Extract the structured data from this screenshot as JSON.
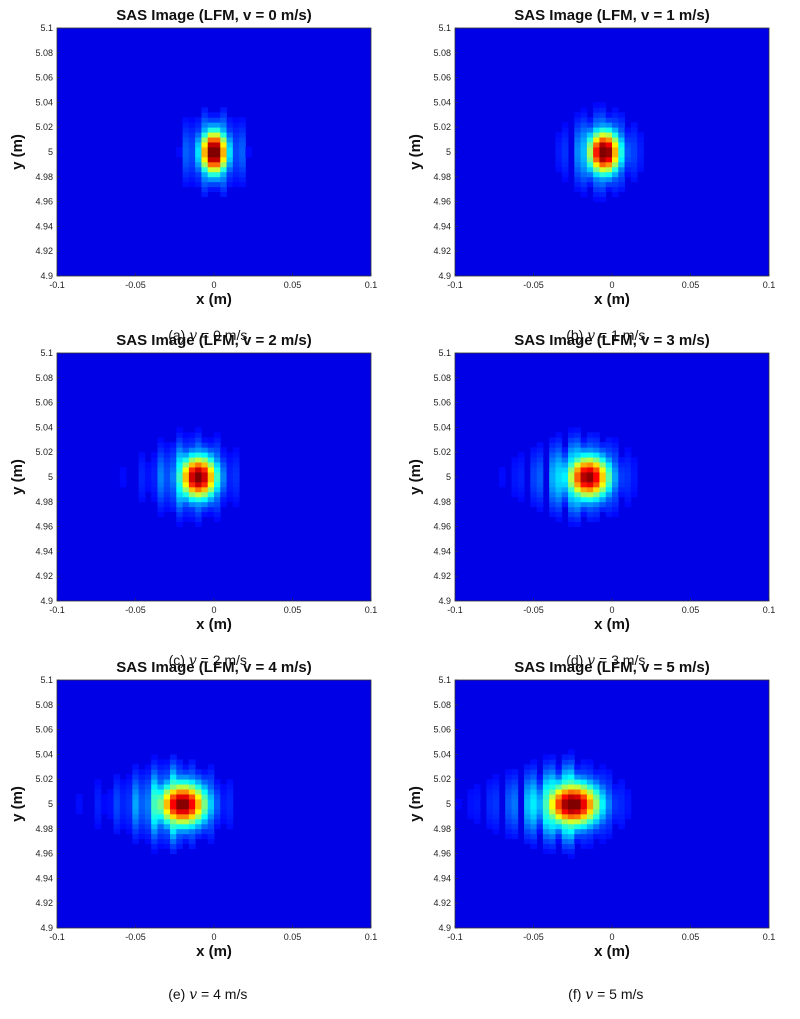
{
  "chart_data": [
    {
      "type": "heatmap",
      "title": "SAS Image (LFM, v = 0 m/s)",
      "caption": {
        "label": "(a)",
        "symbol": "v",
        "rest": "= 0 m/s"
      },
      "xlabel": "x (m)",
      "ylabel": "y (m)",
      "xlim": [
        -0.1,
        0.1
      ],
      "ylim": [
        4.9,
        5.1
      ],
      "xticks": [
        "-0.1",
        "-0.05",
        "0",
        "0.05",
        "0.1"
      ],
      "yticks": [
        "4.9",
        "4.92",
        "4.94",
        "4.96",
        "4.98",
        "5",
        "5.02",
        "5.04",
        "5.06",
        "5.08",
        "5.1"
      ],
      "velocity": 0,
      "peak_x": 0.0,
      "peak_y": 5.0,
      "peak_value": 1.0,
      "colormap": "jet"
    },
    {
      "type": "heatmap",
      "title": "SAS Image (LFM, v = 1 m/s)",
      "caption": {
        "label": "(b)",
        "symbol": "v",
        "rest": "= 1 m/s"
      },
      "xlabel": "x (m)",
      "ylabel": "y (m)",
      "xlim": [
        -0.1,
        0.1
      ],
      "ylim": [
        4.9,
        5.1
      ],
      "xticks": [
        "-0.1",
        "-0.05",
        "0",
        "0.05",
        "0.1"
      ],
      "yticks": [
        "4.9",
        "4.92",
        "4.94",
        "4.96",
        "4.98",
        "5",
        "5.02",
        "5.04",
        "5.06",
        "5.08",
        "5.1"
      ],
      "velocity": 1,
      "peak_x": -0.005,
      "peak_y": 5.0,
      "peak_value": 0.97,
      "colormap": "jet"
    },
    {
      "type": "heatmap",
      "title": "SAS Image (LFM, v = 2 m/s)",
      "caption": {
        "label": "(c)",
        "symbol": "v",
        "rest": "= 2 m/s"
      },
      "xlabel": "x (m)",
      "ylabel": "y (m)",
      "xlim": [
        -0.1,
        0.1
      ],
      "ylim": [
        4.9,
        5.1
      ],
      "xticks": [
        "-0.1",
        "-0.05",
        "0",
        "0.05",
        "0.1"
      ],
      "yticks": [
        "4.9",
        "4.92",
        "4.94",
        "4.96",
        "4.98",
        "5",
        "5.02",
        "5.04",
        "5.06",
        "5.08",
        "5.1"
      ],
      "velocity": 2,
      "peak_x": -0.01,
      "peak_y": 5.0,
      "peak_value": 0.93,
      "colormap": "jet"
    },
    {
      "type": "heatmap",
      "title": "SAS Image (LFM, v = 3 m/s)",
      "caption": {
        "label": "(d)",
        "symbol": "v",
        "rest": "= 3 m/s"
      },
      "xlabel": "x (m)",
      "ylabel": "y (m)",
      "xlim": [
        -0.1,
        0.1
      ],
      "ylim": [
        4.9,
        5.1
      ],
      "xticks": [
        "-0.1",
        "-0.05",
        "0",
        "0.05",
        "0.1"
      ],
      "yticks": [
        "4.9",
        "4.92",
        "4.94",
        "4.96",
        "4.98",
        "5",
        "5.02",
        "5.04",
        "5.06",
        "5.08",
        "5.1"
      ],
      "velocity": 3,
      "peak_x": -0.015,
      "peak_y": 5.0,
      "peak_value": 0.9,
      "colormap": "jet"
    },
    {
      "type": "heatmap",
      "title": "SAS Image (LFM, v = 4 m/s)",
      "caption": {
        "label": "(e)",
        "symbol": "v",
        "rest": "= 4 m/s"
      },
      "xlabel": "x (m)",
      "ylabel": "y (m)",
      "xlim": [
        -0.1,
        0.1
      ],
      "ylim": [
        4.9,
        5.1
      ],
      "xticks": [
        "-0.1",
        "-0.05",
        "0",
        "0.05",
        "0.1"
      ],
      "yticks": [
        "4.9",
        "4.92",
        "4.94",
        "4.96",
        "4.98",
        "5",
        "5.02",
        "5.04",
        "5.06",
        "5.08",
        "5.1"
      ],
      "velocity": 4,
      "peak_x": -0.02,
      "peak_y": 5.0,
      "peak_value": 0.92,
      "colormap": "jet"
    },
    {
      "type": "heatmap",
      "title": "SAS Image (LFM, v = 5 m/s)",
      "caption": {
        "label": "(f)",
        "symbol": "v",
        "rest": "= 5 m/s"
      },
      "xlabel": "x (m)",
      "ylabel": "y (m)",
      "xlim": [
        -0.1,
        0.1
      ],
      "ylim": [
        4.9,
        5.1
      ],
      "xticks": [
        "-0.1",
        "-0.05",
        "0",
        "0.05",
        "0.1"
      ],
      "yticks": [
        "4.9",
        "4.92",
        "4.94",
        "4.96",
        "4.98",
        "5",
        "5.02",
        "5.04",
        "5.06",
        "5.08",
        "5.1"
      ],
      "velocity": 5,
      "peak_x": -0.025,
      "peak_y": 5.0,
      "peak_value": 0.95,
      "colormap": "jet"
    }
  ]
}
